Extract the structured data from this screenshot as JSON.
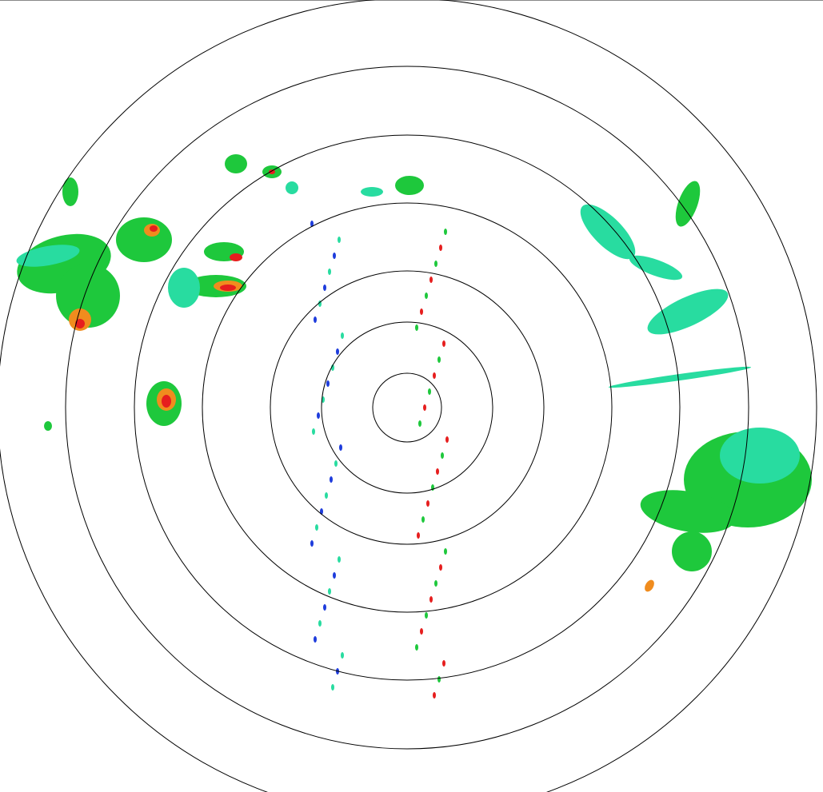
{
  "radar": {
    "range_rings": 7,
    "colors": {
      "ring": "#000000",
      "weak_blue": "#1e3cdc",
      "light_teal": "#28dca0",
      "green": "#1ec83c",
      "yellow": "#f0dc28",
      "orange": "#f08c1e",
      "red": "#e61e1e"
    }
  }
}
